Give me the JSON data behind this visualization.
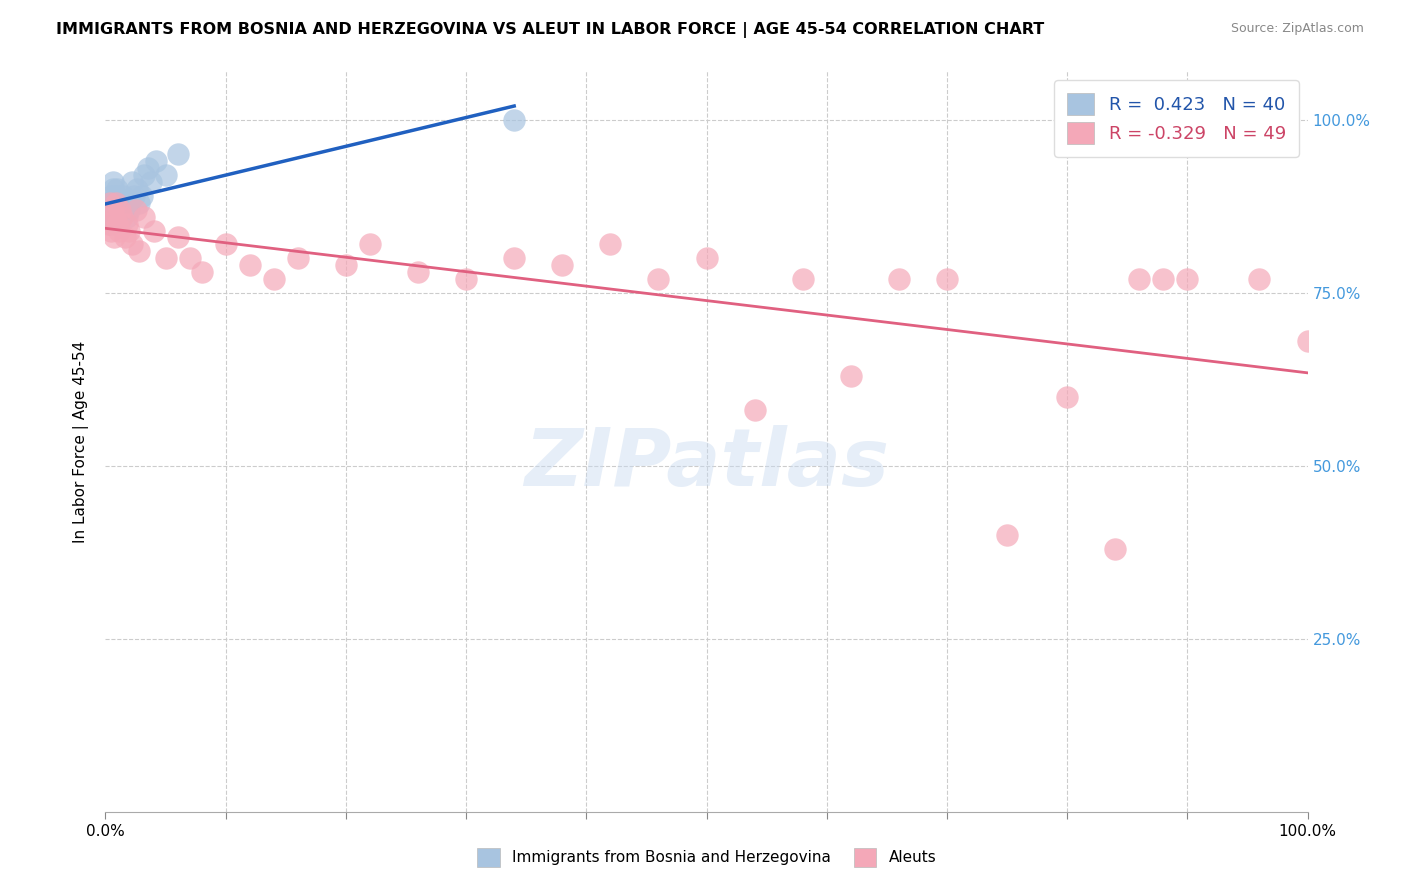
{
  "title": "IMMIGRANTS FROM BOSNIA AND HERZEGOVINA VS ALEUT IN LABOR FORCE | AGE 45-54 CORRELATION CHART",
  "source": "Source: ZipAtlas.com",
  "ylabel": "In Labor Force | Age 45-54",
  "xlim": [
    0.0,
    1.0
  ],
  "ylim": [
    0.0,
    1.07
  ],
  "yticks": [
    0.0,
    0.25,
    0.5,
    0.75,
    1.0
  ],
  "ytick_labels_right": [
    "",
    "25.0%",
    "50.0%",
    "75.0%",
    "100.0%"
  ],
  "legend_r_blue": "R =  0.423",
  "legend_n_blue": "N = 40",
  "legend_r_pink": "R = -0.329",
  "legend_n_pink": "N = 49",
  "legend_label_blue": "Immigrants from Bosnia and Herzegovina",
  "legend_label_pink": "Aleuts",
  "blue_color": "#a8c4e0",
  "pink_color": "#f4a8b8",
  "line_blue": "#2060c0",
  "line_pink": "#e06080",
  "watermark_text": "ZIPatlas",
  "blue_x": [
    0.002,
    0.003,
    0.003,
    0.004,
    0.004,
    0.005,
    0.005,
    0.005,
    0.006,
    0.006,
    0.007,
    0.007,
    0.008,
    0.008,
    0.009,
    0.009,
    0.01,
    0.01,
    0.011,
    0.012,
    0.013,
    0.014,
    0.015,
    0.016,
    0.017,
    0.018,
    0.019,
    0.02,
    0.022,
    0.024,
    0.026,
    0.028,
    0.03,
    0.032,
    0.035,
    0.038,
    0.042,
    0.05,
    0.06,
    0.34
  ],
  "blue_y": [
    0.87,
    0.88,
    0.86,
    0.87,
    0.85,
    0.89,
    0.88,
    0.86,
    0.9,
    0.91,
    0.87,
    0.86,
    0.88,
    0.87,
    0.89,
    0.88,
    0.86,
    0.9,
    0.87,
    0.88,
    0.86,
    0.87,
    0.89,
    0.88,
    0.87,
    0.86,
    0.88,
    0.87,
    0.91,
    0.89,
    0.9,
    0.88,
    0.89,
    0.92,
    0.93,
    0.91,
    0.94,
    0.92,
    0.95,
    1.0
  ],
  "pink_x": [
    0.002,
    0.004,
    0.005,
    0.006,
    0.007,
    0.008,
    0.009,
    0.01,
    0.011,
    0.012,
    0.014,
    0.016,
    0.018,
    0.02,
    0.022,
    0.025,
    0.028,
    0.032,
    0.04,
    0.05,
    0.06,
    0.07,
    0.08,
    0.1,
    0.12,
    0.14,
    0.16,
    0.2,
    0.22,
    0.26,
    0.3,
    0.34,
    0.38,
    0.42,
    0.46,
    0.5,
    0.54,
    0.58,
    0.62,
    0.66,
    0.7,
    0.75,
    0.8,
    0.84,
    0.86,
    0.88,
    0.9,
    0.96,
    1.0
  ],
  "pink_y": [
    0.85,
    0.88,
    0.84,
    0.87,
    0.83,
    0.86,
    0.88,
    0.85,
    0.84,
    0.87,
    0.86,
    0.83,
    0.85,
    0.84,
    0.82,
    0.87,
    0.81,
    0.86,
    0.84,
    0.8,
    0.83,
    0.8,
    0.78,
    0.82,
    0.79,
    0.77,
    0.8,
    0.79,
    0.82,
    0.78,
    0.77,
    0.8,
    0.79,
    0.82,
    0.77,
    0.8,
    0.58,
    0.77,
    0.63,
    0.77,
    0.77,
    0.4,
    0.6,
    0.38,
    0.77,
    0.77,
    0.77,
    0.77,
    0.68
  ]
}
